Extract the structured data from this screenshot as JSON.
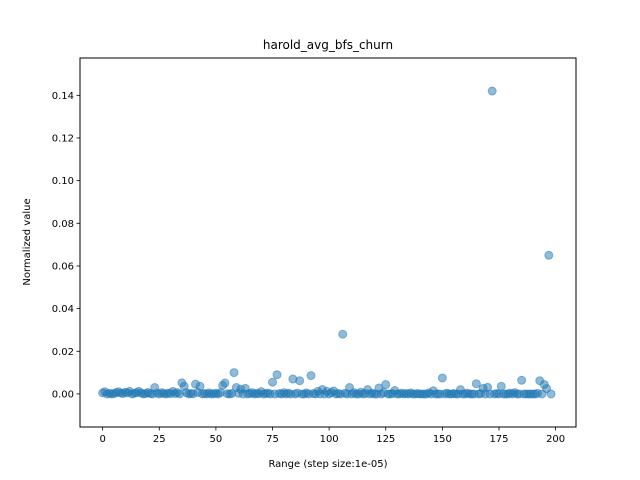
{
  "chart_data": {
    "type": "scatter",
    "title": "harold_avg_bfs_churn",
    "xlabel": "Range (step size:1e-05)",
    "ylabel": "Normalized value",
    "xlim": [
      -10,
      209
    ],
    "ylim": [
      -0.0155,
      0.1575
    ],
    "xticks": [
      0,
      25,
      50,
      75,
      100,
      125,
      150,
      175,
      200
    ],
    "yticks": [
      0.0,
      0.02,
      0.04,
      0.06,
      0.08,
      0.1,
      0.12,
      0.14
    ],
    "xtick_labels": [
      "0",
      "25",
      "50",
      "75",
      "100",
      "125",
      "150",
      "175",
      "200"
    ],
    "ytick_labels": [
      "0.00",
      "0.02",
      "0.04",
      "0.06",
      "0.08",
      "0.10",
      "0.12",
      "0.14"
    ],
    "grid": false,
    "legend": "none",
    "marker_color": "#1f77b4",
    "marker_alpha": 0.5,
    "series": [
      {
        "x": [
          0,
          1,
          2,
          3,
          4,
          5,
          6,
          7,
          8,
          9,
          10,
          11,
          12,
          13,
          14,
          15,
          16,
          17,
          18,
          19,
          20,
          21,
          22,
          23,
          24,
          25,
          26,
          27,
          28,
          29,
          30,
          31,
          32,
          33,
          34,
          35,
          36,
          37,
          38,
          39,
          40,
          41,
          42,
          43,
          44,
          45,
          46,
          47,
          48,
          49,
          50,
          51,
          52,
          53,
          54,
          55,
          56,
          57,
          58,
          59,
          60,
          61,
          62,
          63,
          64,
          65,
          66,
          67,
          68,
          69,
          70,
          71,
          72,
          73,
          74,
          75,
          76,
          77,
          78,
          79,
          80,
          81,
          82,
          83,
          84,
          85,
          86,
          87,
          88,
          89,
          90,
          91,
          92,
          93,
          94,
          95,
          96,
          97,
          98,
          99,
          100,
          101,
          102,
          103,
          104,
          105,
          106,
          107,
          108,
          109,
          110,
          111,
          112,
          113,
          114,
          115,
          116,
          117,
          118,
          119,
          120,
          121,
          122,
          123,
          124,
          125,
          126,
          127,
          128,
          129,
          130,
          131,
          132,
          133,
          134,
          135,
          136,
          137,
          138,
          139,
          140,
          141,
          142,
          143,
          144,
          145,
          146,
          147,
          148,
          149,
          150,
          151,
          152,
          153,
          154,
          155,
          156,
          157,
          158,
          159,
          160,
          161,
          162,
          163,
          164,
          165,
          166,
          167,
          168,
          169,
          170,
          171,
          172,
          173,
          174,
          175,
          176,
          177,
          178,
          179,
          180,
          181,
          182,
          183,
          184,
          185,
          186,
          187,
          188,
          189,
          190,
          191,
          192,
          193,
          194,
          195,
          196,
          197,
          198
        ],
        "y": [
          0.0005,
          0.001,
          0.0,
          0.0003,
          0.0,
          0.0002,
          0.0006,
          0.001,
          0.0004,
          0.0002,
          0.0008,
          0.0005,
          0.0012,
          0.0,
          0.0003,
          0.0006,
          0.0012,
          0.0004,
          0.0,
          0.0002,
          0.0007,
          0.0002,
          0.0,
          0.003,
          0.0004,
          0.0,
          0.0006,
          0.0002,
          0.0,
          0.0004,
          0.0002,
          0.0012,
          0.0002,
          0.0006,
          0.0,
          0.0052,
          0.0036,
          0.0006,
          0.0,
          0.0002,
          0.0001,
          0.0046,
          0.0007,
          0.0036,
          0.0,
          0.0002,
          0.0,
          0.0005,
          0.0,
          0.0001,
          0.0003,
          0.0,
          0.0006,
          0.004,
          0.0051,
          0.0001,
          0.0,
          0.0002,
          0.01,
          0.003,
          0.0003,
          0.0022,
          0.0,
          0.0026,
          0.0,
          0.0002,
          0.0006,
          0.0,
          0.0002,
          0.0001,
          0.0011,
          0.0,
          0.0002,
          0.0004,
          0.0,
          0.0055,
          0.0,
          0.009,
          0.0002,
          0.0,
          0.0006,
          0.0,
          0.0004,
          0.0,
          0.007,
          0.0,
          0.0004,
          0.0062,
          0.0,
          0.0,
          0.0005,
          0.0,
          0.0086,
          0.0002,
          0.0,
          0.0012,
          0.0,
          0.0021,
          0.0,
          0.0012,
          0.0,
          0.0006,
          0.0014,
          0.0,
          0.0002,
          0.0,
          0.028,
          0.0003,
          0.0,
          0.003,
          0.0,
          0.0006,
          0.0,
          0.0,
          0.0008,
          0.0,
          0.0002,
          0.002,
          0.0,
          0.0004,
          0.0,
          0.0,
          0.0028,
          0.0,
          0.0006,
          0.0044,
          0.0,
          0.0,
          0.0002,
          0.0016,
          0.0,
          0.0,
          0.0004,
          0.0,
          0.0002,
          0.0,
          0.0005,
          0.0,
          0.0,
          0.0002,
          0.0,
          0.0,
          0.0,
          0.0,
          0.0005,
          0.0,
          0.0015,
          0.0,
          0.0,
          0.0,
          0.0075,
          0.0,
          0.0004,
          0.0,
          0.0,
          0.0002,
          0.0,
          0.0,
          0.002,
          0.0,
          0.0,
          0.0004,
          0.0,
          0.0,
          0.0,
          0.0048,
          0.0,
          0.0002,
          0.0026,
          0.0,
          0.0031,
          0.0,
          0.142,
          0.0,
          0.0002,
          0.0,
          0.0036,
          0.0,
          0.0,
          0.0,
          0.0004,
          0.0,
          0.0006,
          0.0,
          0.0,
          0.0064,
          0.0,
          0.0,
          0.0,
          0.0,
          0.0,
          0.0,
          0.0003,
          0.0062,
          0.0,
          0.0044,
          0.0025,
          0.065,
          0.0
        ]
      }
    ]
  }
}
